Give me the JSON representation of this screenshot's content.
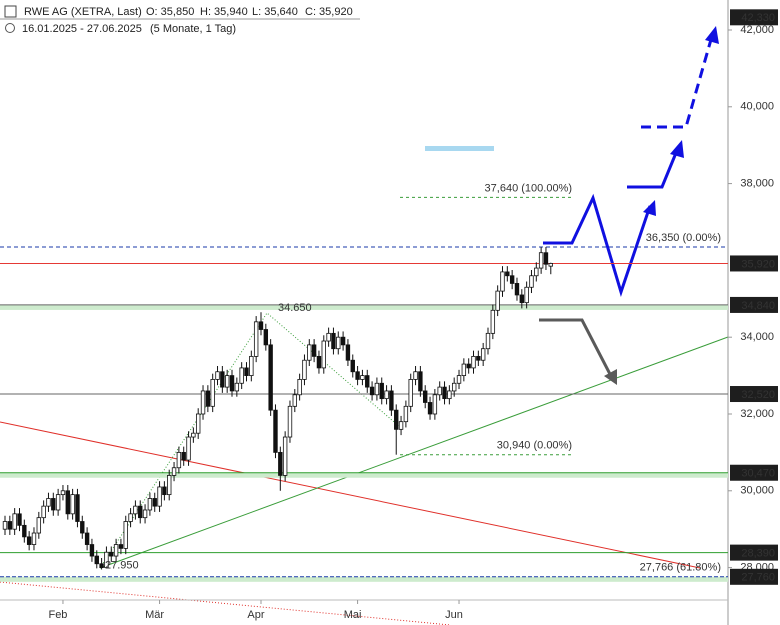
{
  "chart_data": {
    "type": "candlestick",
    "title": "RWE AG (XETRA, Last)",
    "ohlc_labels": [
      "O: 35,850",
      "H: 35,940",
      "L: 35,640",
      "C: 35,920"
    ],
    "subtitle": "16.01.2025 - 27.06.2025",
    "period": "(5 Monate, 1 Tag)",
    "categories": [
      null,
      null,
      null,
      null,
      null,
      null,
      null,
      null,
      null,
      null,
      null,
      null,
      "Feb",
      null,
      null,
      null,
      null,
      null,
      null,
      null,
      null,
      null,
      null,
      null,
      null,
      null,
      null,
      null,
      null,
      null,
      null,
      null,
      "Mär",
      null,
      null,
      null,
      null,
      null,
      null,
      null,
      null,
      null,
      null,
      null,
      null,
      null,
      null,
      null,
      null,
      null,
      null,
      null,
      null,
      "Apr",
      null,
      null,
      null,
      null,
      null,
      null,
      null,
      null,
      null,
      null,
      null,
      null,
      null,
      null,
      null,
      null,
      null,
      null,
      null,
      "Mai",
      null,
      null,
      null,
      null,
      null,
      null,
      null,
      null,
      null,
      null,
      null,
      null,
      null,
      null,
      null,
      null,
      null,
      null,
      null,
      null,
      "Jun",
      null,
      null,
      null,
      null,
      null,
      null,
      null,
      null,
      null,
      null,
      null,
      null,
      null,
      null,
      null,
      null,
      null,
      null,
      null
    ],
    "open": [
      29000,
      29200,
      29000,
      29400,
      29100,
      28800,
      28600,
      28900,
      29300,
      29600,
      29800,
      29500,
      29900,
      30000,
      29400,
      29900,
      29200,
      28900,
      28600,
      28300,
      28100,
      28000,
      28400,
      28300,
      28600,
      28500,
      29200,
      29400,
      29600,
      29300,
      29500,
      29800,
      29600,
      30100,
      29900,
      30400,
      30600,
      31000,
      30800,
      31400,
      31500,
      32000,
      32600,
      32200,
      32900,
      33100,
      32700,
      33000,
      32600,
      32800,
      33200,
      33000,
      33500,
      34400,
      34200,
      33800,
      32100,
      31000,
      30400,
      31400,
      32200,
      32500,
      32900,
      33400,
      33800,
      33500,
      33200,
      33900,
      34100,
      33700,
      34000,
      33800,
      33400,
      33100,
      32900,
      33000,
      32700,
      32500,
      32800,
      32400,
      32600,
      32100,
      31600,
      31800,
      32200,
      32900,
      33100,
      32600,
      32300,
      32000,
      32500,
      32700,
      32400,
      32600,
      32800,
      33000,
      33300,
      33200,
      33500,
      33400,
      33700,
      34100,
      34700,
      35200,
      35700,
      35600,
      35400,
      35100,
      34900,
      35300,
      35600,
      35800,
      36200,
      35850
    ],
    "high": [
      29350,
      29350,
      29550,
      29550,
      29250,
      28950,
      29050,
      29450,
      29750,
      29950,
      29950,
      30050,
      30150,
      30150,
      30050,
      30050,
      29350,
      29050,
      28750,
      28450,
      28250,
      28550,
      28550,
      28750,
      28750,
      29350,
      29550,
      29750,
      29750,
      29650,
      29950,
      29950,
      30250,
      30250,
      30550,
      30750,
      31150,
      31150,
      31550,
      31650,
      32150,
      32750,
      32750,
      33050,
      33250,
      33250,
      33150,
      33150,
      32950,
      33350,
      33350,
      33650,
      34550,
      34650,
      34350,
      33950,
      32250,
      31150,
      31550,
      32350,
      32650,
      33050,
      33550,
      33950,
      33950,
      33650,
      34050,
      34250,
      34250,
      34150,
      34150,
      33950,
      33550,
      33250,
      33150,
      33150,
      32850,
      32950,
      32950,
      32750,
      32750,
      32250,
      31950,
      32350,
      33050,
      33250,
      33250,
      32750,
      32450,
      32650,
      32850,
      32850,
      32750,
      32950,
      33150,
      33450,
      33450,
      33650,
      33650,
      33850,
      34250,
      34850,
      35350,
      35850,
      35850,
      35750,
      35550,
      35250,
      35450,
      35750,
      35950,
      36350,
      36350,
      35940
    ],
    "low": [
      28850,
      28850,
      28850,
      28950,
      28650,
      28450,
      28450,
      28750,
      29150,
      29450,
      29350,
      29350,
      29750,
      29250,
      29250,
      29050,
      28750,
      28450,
      28150,
      27980,
      27950,
      27990,
      28150,
      28150,
      28350,
      28350,
      29050,
      29250,
      29150,
      29150,
      29350,
      29450,
      29450,
      29750,
      29750,
      30250,
      30450,
      30650,
      30650,
      31250,
      31350,
      31850,
      32050,
      32050,
      32750,
      32550,
      32550,
      32450,
      32450,
      32650,
      32850,
      32850,
      33350,
      34050,
      33650,
      31950,
      30850,
      30000,
      30250,
      31250,
      32050,
      32350,
      32750,
      33250,
      33350,
      33050,
      33050,
      33750,
      33550,
      33550,
      33650,
      33250,
      32950,
      32750,
      32750,
      32550,
      32350,
      32350,
      32250,
      32250,
      31950,
      30940,
      31450,
      31650,
      32050,
      32750,
      32450,
      32150,
      31850,
      31850,
      32350,
      32250,
      32250,
      32450,
      32650,
      32850,
      33050,
      33050,
      33250,
      33250,
      33550,
      33950,
      34550,
      35050,
      35450,
      35250,
      34950,
      34750,
      34750,
      35150,
      35450,
      35650,
      35750,
      35640
    ],
    "close": [
      29200,
      29000,
      29400,
      29100,
      28800,
      28600,
      28900,
      29300,
      29600,
      29800,
      29500,
      29900,
      30000,
      29400,
      29900,
      29200,
      28900,
      28600,
      28300,
      28100,
      28000,
      28400,
      28300,
      28600,
      28500,
      29200,
      29400,
      29600,
      29300,
      29500,
      29800,
      29600,
      30100,
      29900,
      30400,
      30600,
      31000,
      30800,
      31400,
      31500,
      32000,
      32600,
      32200,
      32900,
      33100,
      32700,
      33000,
      32600,
      32800,
      33200,
      33000,
      33500,
      34400,
      34200,
      33800,
      32100,
      31000,
      30400,
      31400,
      32200,
      32500,
      32900,
      33400,
      33800,
      33500,
      33200,
      33900,
      34100,
      33700,
      34000,
      33800,
      33400,
      33100,
      32900,
      33000,
      32700,
      32500,
      32800,
      32400,
      32600,
      32100,
      31600,
      31800,
      32200,
      32900,
      33100,
      32600,
      32300,
      32000,
      32500,
      32700,
      32400,
      32600,
      32800,
      33000,
      33300,
      33200,
      33500,
      33400,
      33700,
      34100,
      34700,
      35200,
      35700,
      35600,
      35400,
      35100,
      34900,
      35300,
      35600,
      35800,
      36200,
      35900,
      35920
    ],
    "up_color": "#ffffff",
    "down_color": "#111111",
    "outline_color": "#111111",
    "ylim": [
      27156,
      42781
    ],
    "yticks": [
      {
        "value": 28000,
        "label": "28,000"
      },
      {
        "value": 30000,
        "label": "30,000"
      },
      {
        "value": 32000,
        "label": "32,000"
      },
      {
        "value": 34000,
        "label": "34,000"
      },
      {
        "value": 38000,
        "label": "38,000"
      },
      {
        "value": 40000,
        "label": "40,000"
      },
      {
        "value": 42000,
        "label": "42,000"
      }
    ],
    "grid": false,
    "levels": [
      {
        "value": 42330,
        "label": "42,330"
      },
      {
        "value": 35920,
        "label": "35,920",
        "color": "#e53935"
      },
      {
        "value": 34840,
        "label": "34,840",
        "color": "#666666",
        "band": true
      },
      {
        "value": 32520,
        "label": "32,520",
        "color": "#666666"
      },
      {
        "value": 30470,
        "label": "30,470",
        "color": "#2e9e2e",
        "band": true
      },
      {
        "value": 28390,
        "label": "28,390",
        "color": "#2e9e2e"
      },
      {
        "value": 27760,
        "label": "27,760",
        "color": "#1a3aa8",
        "dashed": true,
        "band": true
      }
    ],
    "fib_lines": [
      {
        "value": 37640,
        "label": "37,640 (100.00%)",
        "color": "#3a9d3a",
        "span": "partial"
      },
      {
        "value": 36350,
        "label": "36,350 (0.00%)",
        "color": "#1a3aa8",
        "span": "full"
      },
      {
        "value": 30940,
        "label": "30,940 (0.00%)",
        "color": "#3a9d3a",
        "span": "partial"
      },
      {
        "value": 27766,
        "label": "27,766 (61.80%)",
        "color": "#1a3aa8",
        "span": "none"
      }
    ],
    "annotations": [
      {
        "value": 34650,
        "label": "34.650"
      },
      {
        "value": 27950,
        "label": "27.950"
      }
    ]
  }
}
